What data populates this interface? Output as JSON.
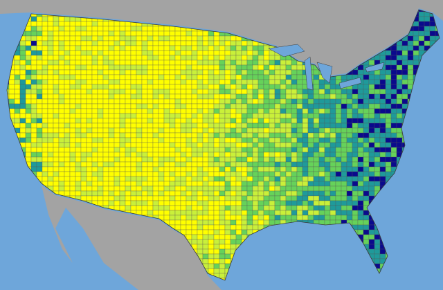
{
  "map": {
    "water_color": "#6ea6da",
    "neighbor_land_color": "#a3a3a3",
    "border_color": "#3a3a3a",
    "color_scale": [
      "#ffff00",
      "#c9f03a",
      "#66d25a",
      "#1f9a9a",
      "#0a0a8c"
    ]
  }
}
